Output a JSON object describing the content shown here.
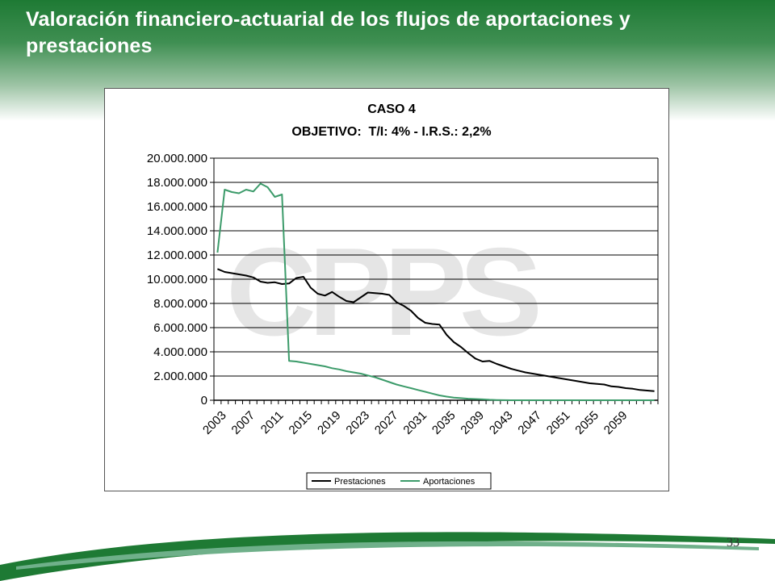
{
  "slide": {
    "title": "Valoración financiero-actuarial de los flujos de aportaciones y prestaciones",
    "page_number": "33"
  },
  "watermark": {
    "text": "CPPS"
  },
  "chart_data": {
    "type": "line",
    "title": "CASO 4",
    "subtitle": "OBJETIVO:  T/I: 4% - I.R.S.: 2,2%",
    "xlabel": "",
    "ylabel": "",
    "ylim": [
      0,
      20000000
    ],
    "y_ticks": [
      0,
      2000000,
      4000000,
      6000000,
      8000000,
      10000000,
      12000000,
      14000000,
      16000000,
      18000000,
      20000000
    ],
    "y_tick_labels": [
      "0",
      "2.000.000",
      "4.000.000",
      "6.000.000",
      "8.000.000",
      "10.000.000",
      "12.000.000",
      "14.000.000",
      "16.000.000",
      "18.000.000",
      "20.000.000"
    ],
    "x": [
      2003,
      2004,
      2005,
      2006,
      2007,
      2008,
      2009,
      2010,
      2011,
      2012,
      2013,
      2014,
      2015,
      2016,
      2017,
      2018,
      2019,
      2020,
      2021,
      2022,
      2023,
      2024,
      2025,
      2026,
      2027,
      2028,
      2029,
      2030,
      2031,
      2032,
      2033,
      2034,
      2035,
      2036,
      2037,
      2038,
      2039,
      2040,
      2041,
      2042,
      2043,
      2044,
      2045,
      2046,
      2047,
      2048,
      2049,
      2050,
      2051,
      2052,
      2053,
      2054,
      2055,
      2056,
      2057,
      2058,
      2059,
      2060,
      2061,
      2062,
      2063,
      2064
    ],
    "x_tick_labels": [
      "2003",
      "2007",
      "2011",
      "2015",
      "2019",
      "2023",
      "2027",
      "2031",
      "2035",
      "2039",
      "2043",
      "2047",
      "2051",
      "2055",
      "2059"
    ],
    "grid": true,
    "legend_position": "bottom",
    "series": [
      {
        "name": "Prestaciones",
        "color": "#000000",
        "values": [
          10850000,
          10600000,
          10500000,
          10400000,
          10300000,
          10150000,
          9800000,
          9700000,
          9750000,
          9600000,
          9650000,
          10100000,
          10200000,
          9300000,
          8800000,
          8650000,
          8950000,
          8550000,
          8200000,
          8100000,
          8500000,
          8900000,
          8850000,
          8800000,
          8700000,
          8100000,
          7800000,
          7400000,
          6800000,
          6400000,
          6300000,
          6250000,
          5400000,
          4800000,
          4400000,
          3900000,
          3450000,
          3200000,
          3250000,
          3000000,
          2800000,
          2600000,
          2450000,
          2300000,
          2200000,
          2100000,
          2000000,
          1900000,
          1800000,
          1700000,
          1600000,
          1500000,
          1400000,
          1350000,
          1300000,
          1150000,
          1100000,
          1000000,
          950000,
          850000,
          800000,
          750000
        ]
      },
      {
        "name": "Aportaciones",
        "color": "#3c9b6a",
        "values": [
          12200000,
          17400000,
          17200000,
          17100000,
          17400000,
          17250000,
          17900000,
          17600000,
          16800000,
          17000000,
          3250000,
          3200000,
          3100000,
          3000000,
          2900000,
          2800000,
          2650000,
          2550000,
          2400000,
          2300000,
          2200000,
          2050000,
          1900000,
          1700000,
          1500000,
          1300000,
          1150000,
          1000000,
          850000,
          700000,
          550000,
          400000,
          300000,
          220000,
          170000,
          130000,
          100000,
          70000,
          40000,
          20000,
          10000,
          0,
          0,
          0,
          0,
          0,
          0,
          0,
          0,
          0,
          0,
          0,
          0,
          0,
          0,
          0,
          0,
          0,
          0,
          0,
          0,
          0
        ]
      }
    ]
  }
}
